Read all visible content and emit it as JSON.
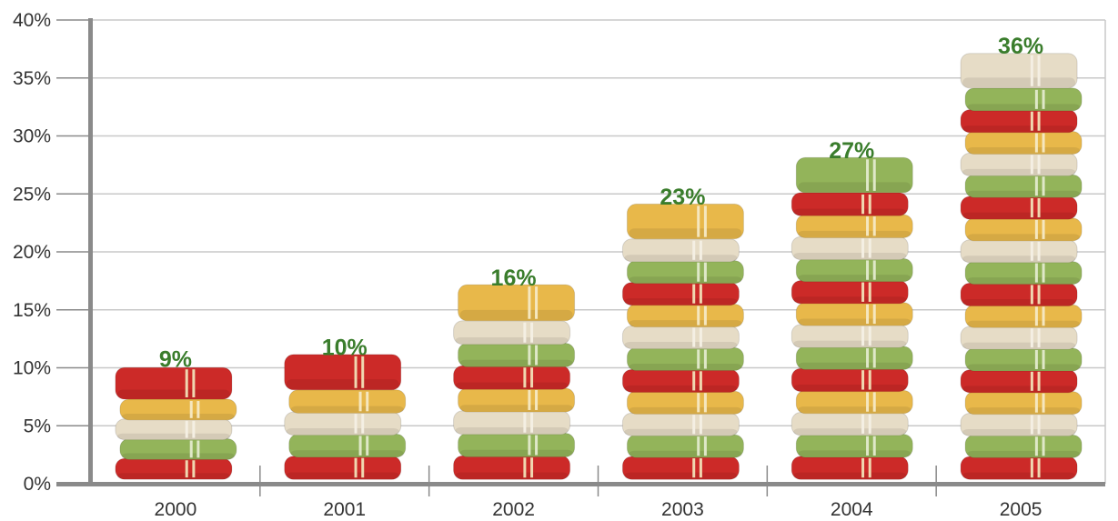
{
  "chart_data": {
    "type": "bar",
    "title": "",
    "xlabel": "",
    "ylabel": "",
    "categories": [
      "2000",
      "2001",
      "2002",
      "2003",
      "2004",
      "2005"
    ],
    "values": [
      9,
      10,
      16,
      23,
      27,
      36
    ],
    "data_labels": [
      "9%",
      "10%",
      "16%",
      "23%",
      "27%",
      "36%"
    ],
    "ylim": [
      0,
      40
    ],
    "yticks": [
      0,
      5,
      10,
      15,
      20,
      25,
      30,
      35,
      40
    ],
    "ytick_labels": [
      "0%",
      "5%",
      "10%",
      "15%",
      "20%",
      "25%",
      "30%",
      "35%",
      "40%"
    ],
    "grid": true,
    "bar_style": "stacked towels",
    "colors": {
      "label": "#3a7d2c",
      "grid": "#c8c8c8",
      "axis": "#8a8a8a",
      "towel_yellow": "#e8b84a",
      "towel_cream": "#e6dcc6",
      "towel_green": "#93b45a",
      "towel_red": "#cc2a28"
    }
  }
}
